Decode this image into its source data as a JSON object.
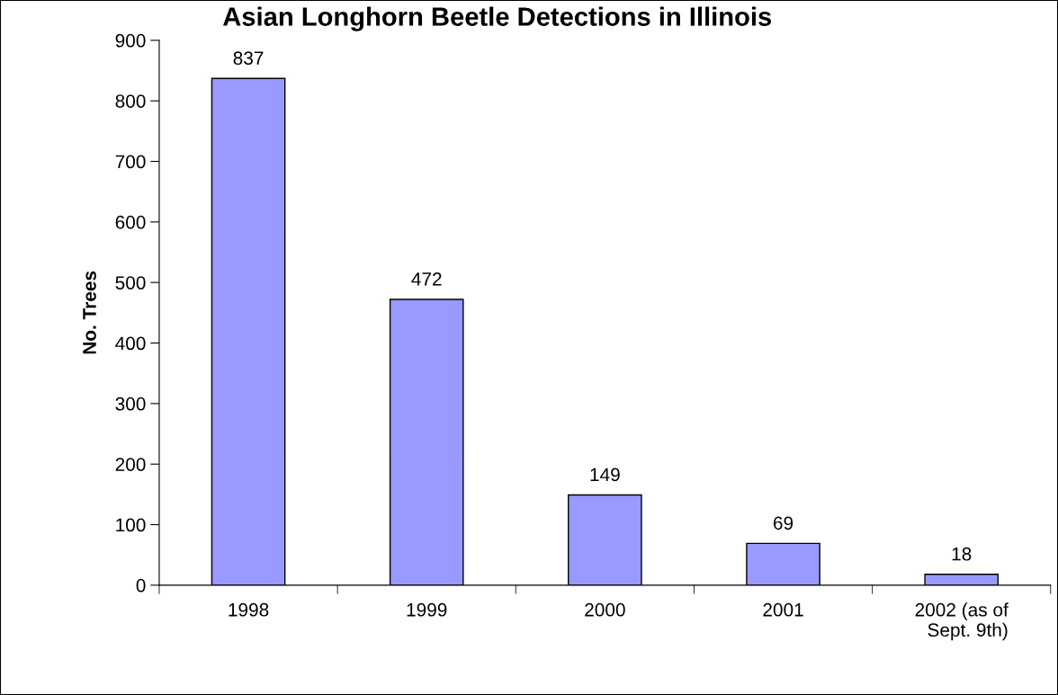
{
  "chart_data": {
    "type": "bar",
    "title": "Asian Longhorn Beetle Detections in Illinois",
    "ylabel": "No. Trees",
    "categories": [
      "1998",
      "1999",
      "2000",
      "2001",
      "2002 (as of\nSept. 9th)"
    ],
    "values": [
      837,
      472,
      149,
      69,
      18
    ],
    "color": "#9999ff",
    "ylim": [
      0,
      900
    ],
    "yticks": [
      0,
      100,
      200,
      300,
      400,
      500,
      600,
      700,
      800,
      900
    ],
    "grid": false,
    "data_labels": true
  }
}
